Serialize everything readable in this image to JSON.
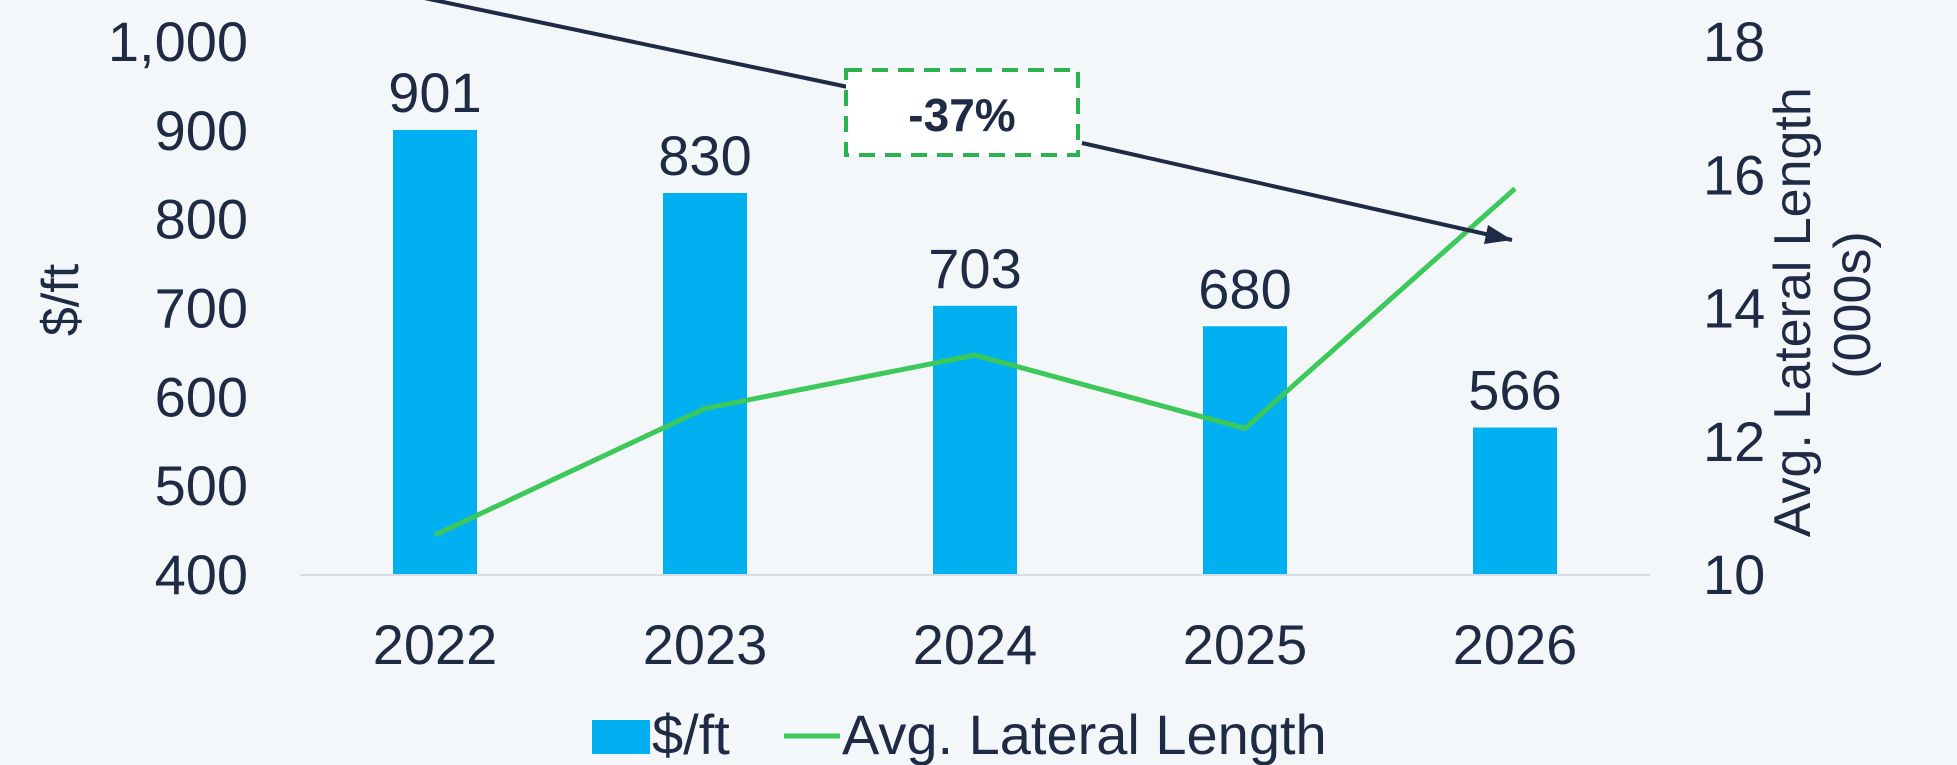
{
  "chart_data": {
    "type": "bar",
    "categories": [
      "2022",
      "2023",
      "2024",
      "2025",
      "2026"
    ],
    "series": [
      {
        "name": "$/ft",
        "type": "bar",
        "axis": "left",
        "values": [
          901,
          830,
          703,
          680,
          566
        ],
        "color": "#00b0f0",
        "data_labels": [
          "901",
          "830",
          "703",
          "680",
          "566"
        ]
      },
      {
        "name": "Avg. Lateral Length",
        "type": "line",
        "axis": "right",
        "values": [
          10.6,
          12.5,
          13.3,
          12.2,
          15.8
        ],
        "color": "#3cc85a"
      }
    ],
    "y_left": {
      "label": "$/ft",
      "ylim": [
        400,
        1000
      ],
      "ticks": [
        "400",
        "500",
        "600",
        "700",
        "800",
        "900",
        "1,000"
      ]
    },
    "y_right": {
      "label_line1": "Avg. Lateral Length",
      "label_line2": "(000s)",
      "ylim": [
        10,
        18
      ],
      "ticks": [
        "10",
        "12",
        "14",
        "16",
        "18"
      ]
    },
    "annotation": {
      "text": "-37%",
      "border_color": "#2bb34f",
      "arrow_color": "#1f2a44"
    },
    "legend": {
      "placement": "bottom",
      "items": [
        "$/ft",
        "Avg. Lateral Length"
      ]
    },
    "grid": false
  }
}
